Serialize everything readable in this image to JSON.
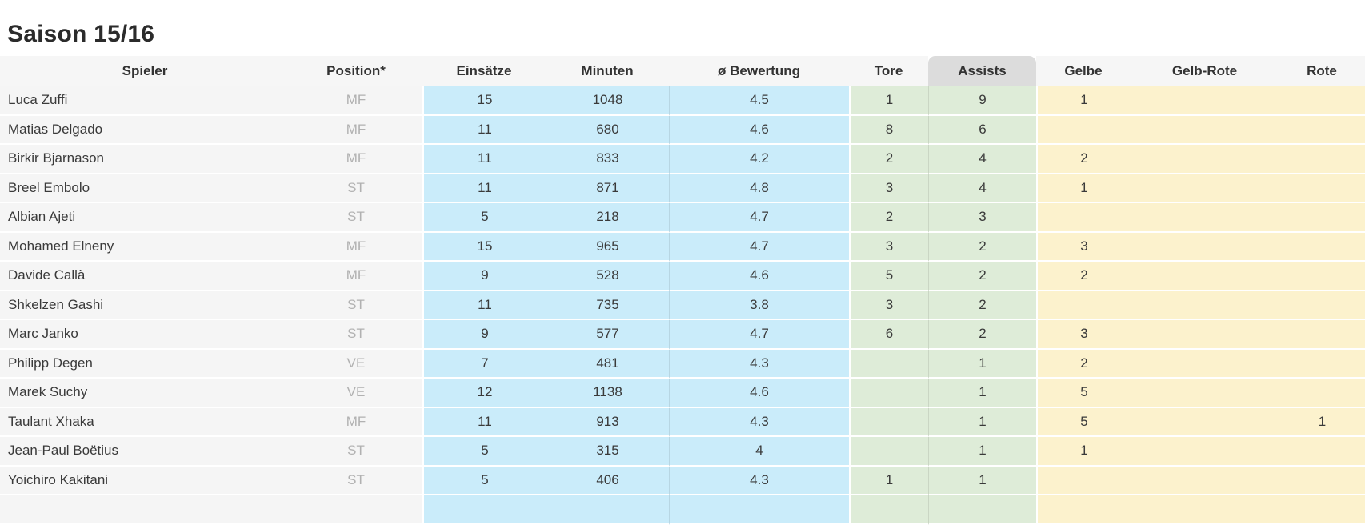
{
  "page": {
    "title": "Saison 15/16"
  },
  "colors": {
    "appearance_columns": "#caecfa",
    "goal_columns": "#deecd8",
    "card_columns": "#fcf2cd",
    "sorted_header": "#dcdcdc",
    "row_background": "#f5f5f5",
    "header_background": "#f6f6f6",
    "position_text": "#b1b1b1",
    "text": "#3a3a3a"
  },
  "table": {
    "columns": [
      {
        "key": "spieler",
        "label": "Spieler",
        "group": "plain",
        "sorted": false
      },
      {
        "key": "position",
        "label": "Position*",
        "group": "plain",
        "sorted": false
      },
      {
        "key": "einsaetze",
        "label": "Einsätze",
        "group": "blue",
        "sorted": false
      },
      {
        "key": "minuten",
        "label": "Minuten",
        "group": "blue",
        "sorted": false
      },
      {
        "key": "bewertung",
        "label": "ø Bewertung",
        "group": "blue",
        "sorted": false
      },
      {
        "key": "tore",
        "label": "Tore",
        "group": "green",
        "sorted": false
      },
      {
        "key": "assists",
        "label": "Assists",
        "group": "green",
        "sorted": true
      },
      {
        "key": "gelbe",
        "label": "Gelbe",
        "group": "yellow",
        "sorted": false
      },
      {
        "key": "gelbrote",
        "label": "Gelb-Rote",
        "group": "yellow",
        "sorted": false
      },
      {
        "key": "rote",
        "label": "Rote",
        "group": "yellow",
        "sorted": false
      }
    ],
    "rows": [
      {
        "spieler": "Luca Zuffi",
        "position": "MF",
        "einsaetze": "15",
        "minuten": "1048",
        "bewertung": "4.5",
        "tore": "1",
        "assists": "9",
        "gelbe": "1",
        "gelbrote": "",
        "rote": ""
      },
      {
        "spieler": "Matias Delgado",
        "position": "MF",
        "einsaetze": "11",
        "minuten": "680",
        "bewertung": "4.6",
        "tore": "8",
        "assists": "6",
        "gelbe": "",
        "gelbrote": "",
        "rote": ""
      },
      {
        "spieler": "Birkir Bjarnason",
        "position": "MF",
        "einsaetze": "11",
        "minuten": "833",
        "bewertung": "4.2",
        "tore": "2",
        "assists": "4",
        "gelbe": "2",
        "gelbrote": "",
        "rote": ""
      },
      {
        "spieler": "Breel Embolo",
        "position": "ST",
        "einsaetze": "11",
        "minuten": "871",
        "bewertung": "4.8",
        "tore": "3",
        "assists": "4",
        "gelbe": "1",
        "gelbrote": "",
        "rote": ""
      },
      {
        "spieler": "Albian Ajeti",
        "position": "ST",
        "einsaetze": "5",
        "minuten": "218",
        "bewertung": "4.7",
        "tore": "2",
        "assists": "3",
        "gelbe": "",
        "gelbrote": "",
        "rote": ""
      },
      {
        "spieler": "Mohamed Elneny",
        "position": "MF",
        "einsaetze": "15",
        "minuten": "965",
        "bewertung": "4.7",
        "tore": "3",
        "assists": "2",
        "gelbe": "3",
        "gelbrote": "",
        "rote": ""
      },
      {
        "spieler": "Davide Callà",
        "position": "MF",
        "einsaetze": "9",
        "minuten": "528",
        "bewertung": "4.6",
        "tore": "5",
        "assists": "2",
        "gelbe": "2",
        "gelbrote": "",
        "rote": ""
      },
      {
        "spieler": "Shkelzen Gashi",
        "position": "ST",
        "einsaetze": "11",
        "minuten": "735",
        "bewertung": "3.8",
        "tore": "3",
        "assists": "2",
        "gelbe": "",
        "gelbrote": "",
        "rote": ""
      },
      {
        "spieler": "Marc Janko",
        "position": "ST",
        "einsaetze": "9",
        "minuten": "577",
        "bewertung": "4.7",
        "tore": "6",
        "assists": "2",
        "gelbe": "3",
        "gelbrote": "",
        "rote": ""
      },
      {
        "spieler": "Philipp Degen",
        "position": "VE",
        "einsaetze": "7",
        "minuten": "481",
        "bewertung": "4.3",
        "tore": "",
        "assists": "1",
        "gelbe": "2",
        "gelbrote": "",
        "rote": ""
      },
      {
        "spieler": "Marek Suchy",
        "position": "VE",
        "einsaetze": "12",
        "minuten": "1138",
        "bewertung": "4.6",
        "tore": "",
        "assists": "1",
        "gelbe": "5",
        "gelbrote": "",
        "rote": ""
      },
      {
        "spieler": "Taulant Xhaka",
        "position": "MF",
        "einsaetze": "11",
        "minuten": "913",
        "bewertung": "4.3",
        "tore": "",
        "assists": "1",
        "gelbe": "5",
        "gelbrote": "",
        "rote": "1"
      },
      {
        "spieler": "Jean-Paul Boëtius",
        "position": "ST",
        "einsaetze": "5",
        "minuten": "315",
        "bewertung": "4",
        "tore": "",
        "assists": "1",
        "gelbe": "1",
        "gelbrote": "",
        "rote": ""
      },
      {
        "spieler": "Yoichiro Kakitani",
        "position": "ST",
        "einsaetze": "5",
        "minuten": "406",
        "bewertung": "4.3",
        "tore": "1",
        "assists": "1",
        "gelbe": "",
        "gelbrote": "",
        "rote": ""
      },
      {
        "spieler": "",
        "position": "",
        "einsaetze": "",
        "minuten": "",
        "bewertung": "",
        "tore": "",
        "assists": "",
        "gelbe": "",
        "gelbrote": "",
        "rote": ""
      }
    ]
  }
}
